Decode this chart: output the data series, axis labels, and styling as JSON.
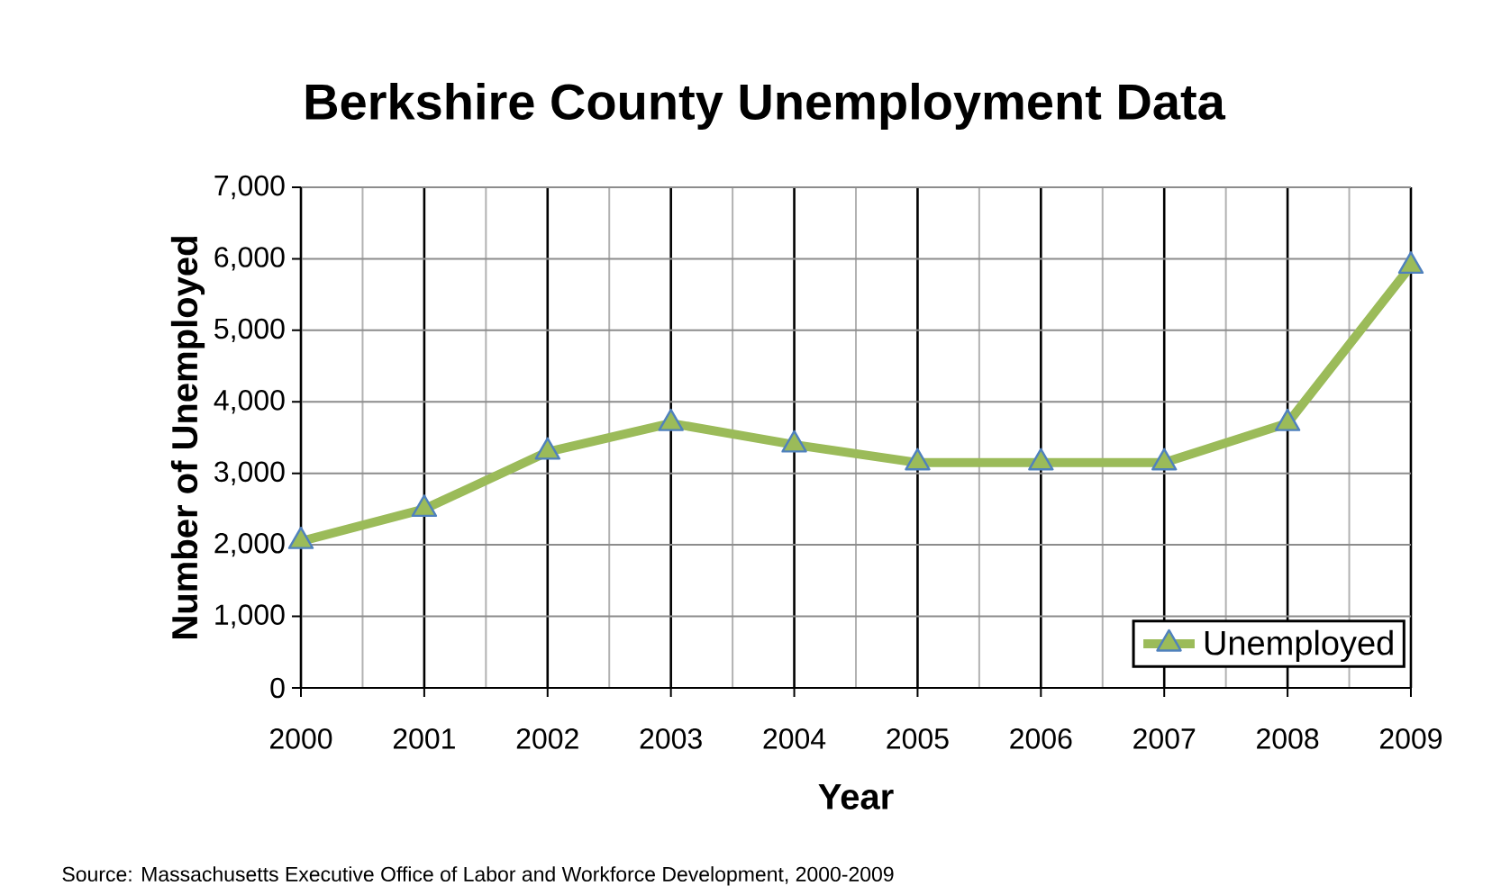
{
  "chart_data": {
    "type": "line",
    "title": "Berkshire County Unemployment Data",
    "xlabel": "Year",
    "ylabel": "Number of Unemployed",
    "categories": [
      "2000",
      "2001",
      "2002",
      "2003",
      "2004",
      "2005",
      "2006",
      "2007",
      "2008",
      "2009"
    ],
    "series": [
      {
        "name": "Unemployed",
        "color": "#9bbb59",
        "values": [
          2050,
          2500,
          3300,
          3700,
          3400,
          3150,
          3150,
          3150,
          3700,
          5900
        ]
      }
    ],
    "ylim": [
      0,
      7000
    ],
    "yticks": [
      {
        "value": 0,
        "label": "0"
      },
      {
        "value": 1000,
        "label": "1,000"
      },
      {
        "value": 2000,
        "label": "2,000"
      },
      {
        "value": 3000,
        "label": "3,000"
      },
      {
        "value": 4000,
        "label": "4,000"
      },
      {
        "value": 5000,
        "label": "5,000"
      },
      {
        "value": 6000,
        "label": "6,000"
      },
      {
        "value": 7000,
        "label": "7,000"
      }
    ],
    "grid": true,
    "legend": "bottom right",
    "marker": "triangle",
    "line_style": "solid",
    "annotations": [
      "Source: Massachusetts Executive Office of Labor and Workforce Development, 2000-2009"
    ]
  }
}
